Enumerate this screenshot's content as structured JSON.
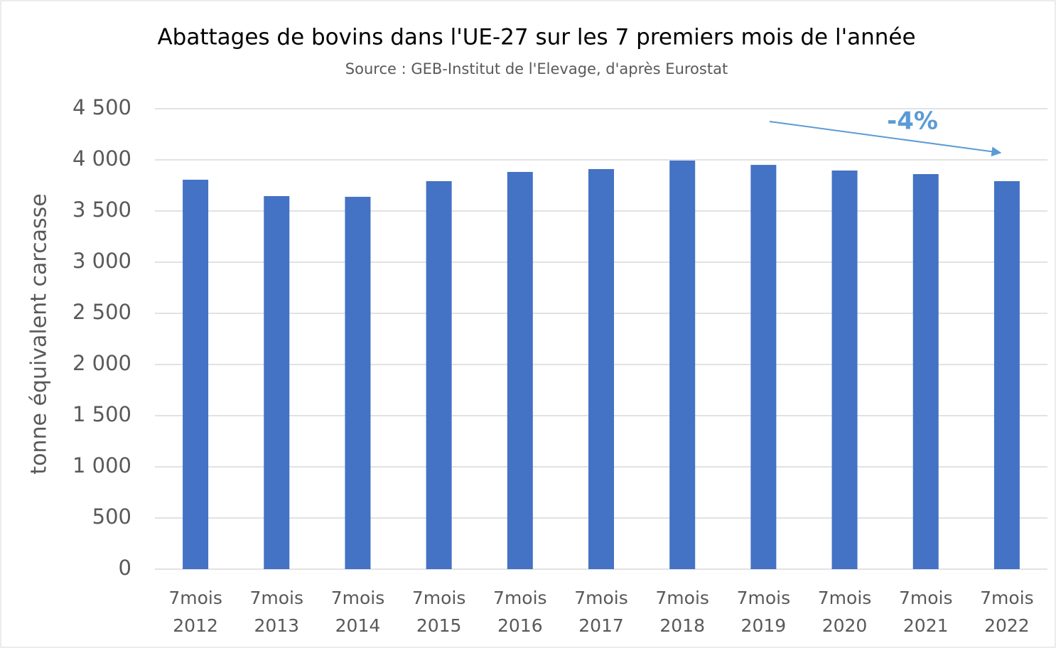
{
  "chart_data": {
    "type": "bar",
    "title": "Abattages de bovins dans l'UE-27 sur les 7 premiers mois de l'année",
    "subtitle": "Source : GEB-Institut de l'Elevage, d'après Eurostat",
    "y_label": "tonne équivalent carcasse",
    "annotation": "-4%",
    "categories": [
      "7mois 2012",
      "7mois 2013",
      "7mois 2014",
      "7mois 2015",
      "7mois 2016",
      "7mois 2017",
      "7mois 2018",
      "7mois 2019",
      "7mois 2020",
      "7mois 2021",
      "7mois 2022"
    ],
    "values": [
      3806,
      3646,
      3639,
      3792,
      3882,
      3910,
      3993,
      3951,
      3896,
      3861,
      3792
    ],
    "color": "#4472c4",
    "ylim": [
      0,
      4500
    ],
    "yticks": [
      0,
      500,
      {
        "value": 1000,
        "label": "1 000"
      },
      {
        "value": 1500,
        "label": "1 500"
      },
      {
        "value": 2000,
        "label": "2 000"
      },
      {
        "value": 2500,
        "label": "2 500"
      },
      {
        "value": 3000,
        "label": "3 000"
      },
      {
        "value": 3500,
        "label": "3 500"
      },
      {
        "value": 4000,
        "label": "4 000"
      },
      {
        "value": 4500,
        "label": "4 500"
      }
    ],
    "grid": true
  }
}
